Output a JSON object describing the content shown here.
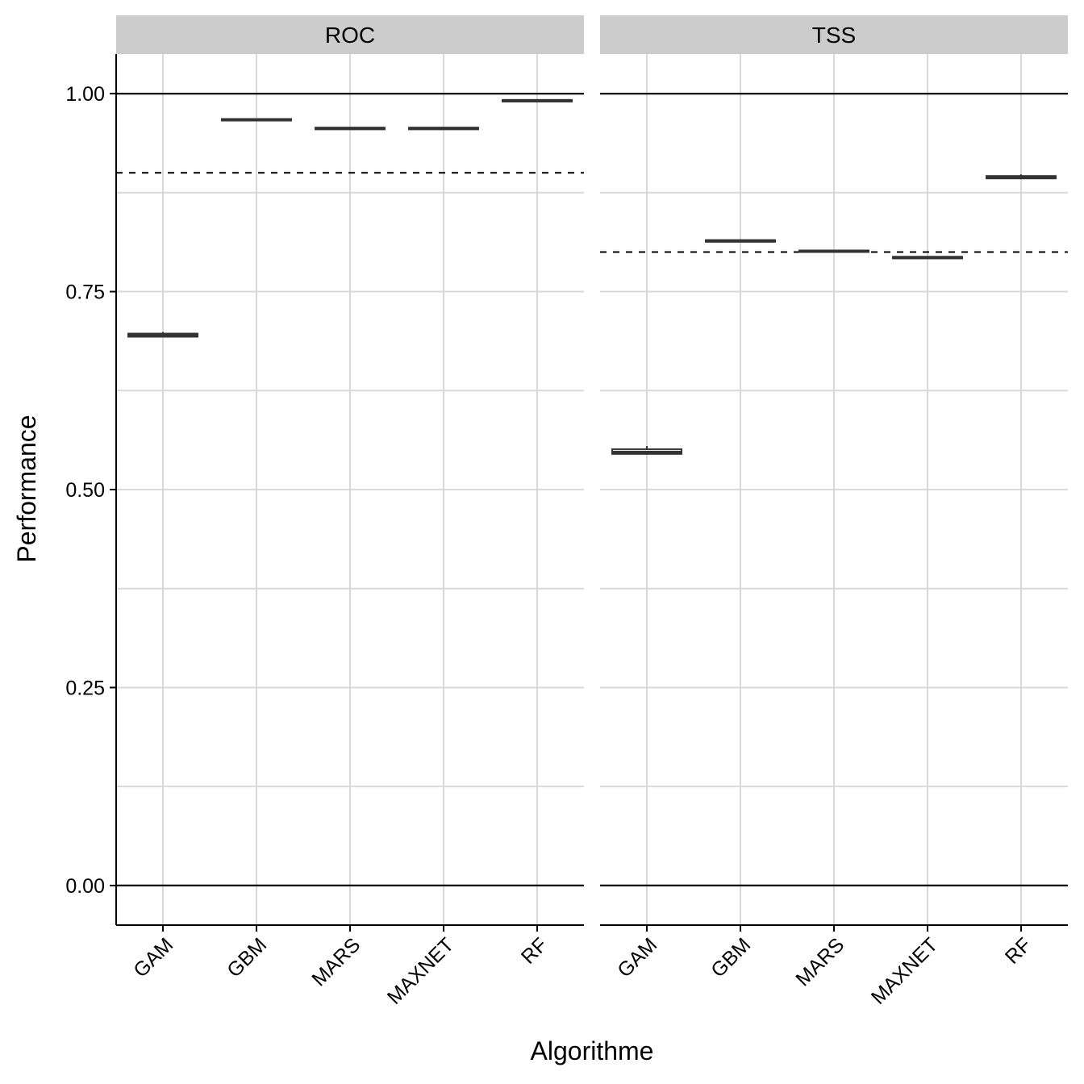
{
  "chart_data": {
    "type": "boxplot",
    "xlabel": "Algorithme",
    "ylabel": "Performance",
    "ylim": [
      -0.05,
      1.05
    ],
    "yticks": [
      0.0,
      0.25,
      0.5,
      0.75,
      1.0
    ],
    "ytick_labels": [
      "0.00",
      "0.25",
      "0.50",
      "0.75",
      "1.00"
    ],
    "categories": [
      "GAM",
      "GBM",
      "MARS",
      "MAXNET",
      "RF"
    ],
    "grid": true,
    "colors": {
      "strip_background": "#cccccc",
      "grid": "#d9d9d9",
      "box": "#333333",
      "reference": "#000000"
    },
    "panels": [
      {
        "strip": "ROC",
        "reference_lines": [
          0.0,
          1.0
        ],
        "dashed_threshold": 0.9,
        "boxes": [
          {
            "category": "GAM",
            "q1": 0.693,
            "median": 0.695,
            "q3": 0.697,
            "whisker_low": 0.692,
            "whisker_high": 0.699
          },
          {
            "category": "GBM",
            "q1": 0.966,
            "median": 0.967,
            "q3": 0.968,
            "whisker_low": 0.966,
            "whisker_high": 0.968
          },
          {
            "category": "MARS",
            "q1": 0.955,
            "median": 0.956,
            "q3": 0.957,
            "whisker_low": 0.955,
            "whisker_high": 0.957
          },
          {
            "category": "MAXNET",
            "q1": 0.955,
            "median": 0.956,
            "q3": 0.957,
            "whisker_low": 0.955,
            "whisker_high": 0.957
          },
          {
            "category": "RF",
            "q1": 0.99,
            "median": 0.991,
            "q3": 0.992,
            "whisker_low": 0.99,
            "whisker_high": 0.992
          }
        ]
      },
      {
        "strip": "TSS",
        "reference_lines": [
          0.0,
          1.0
        ],
        "dashed_threshold": 0.8,
        "boxes": [
          {
            "category": "GAM",
            "q1": 0.545,
            "median": 0.547,
            "q3": 0.551,
            "whisker_low": 0.544,
            "whisker_high": 0.555
          },
          {
            "category": "GBM",
            "q1": 0.813,
            "median": 0.814,
            "q3": 0.815,
            "whisker_low": 0.813,
            "whisker_high": 0.815
          },
          {
            "category": "MARS",
            "q1": 0.8,
            "median": 0.801,
            "q3": 0.802,
            "whisker_low": 0.8,
            "whisker_high": 0.802
          },
          {
            "category": "MAXNET",
            "q1": 0.792,
            "median": 0.793,
            "q3": 0.794,
            "whisker_low": 0.792,
            "whisker_high": 0.794
          },
          {
            "category": "RF",
            "q1": 0.893,
            "median": 0.894,
            "q3": 0.896,
            "whisker_low": 0.892,
            "whisker_high": 0.898
          }
        ]
      }
    ]
  }
}
